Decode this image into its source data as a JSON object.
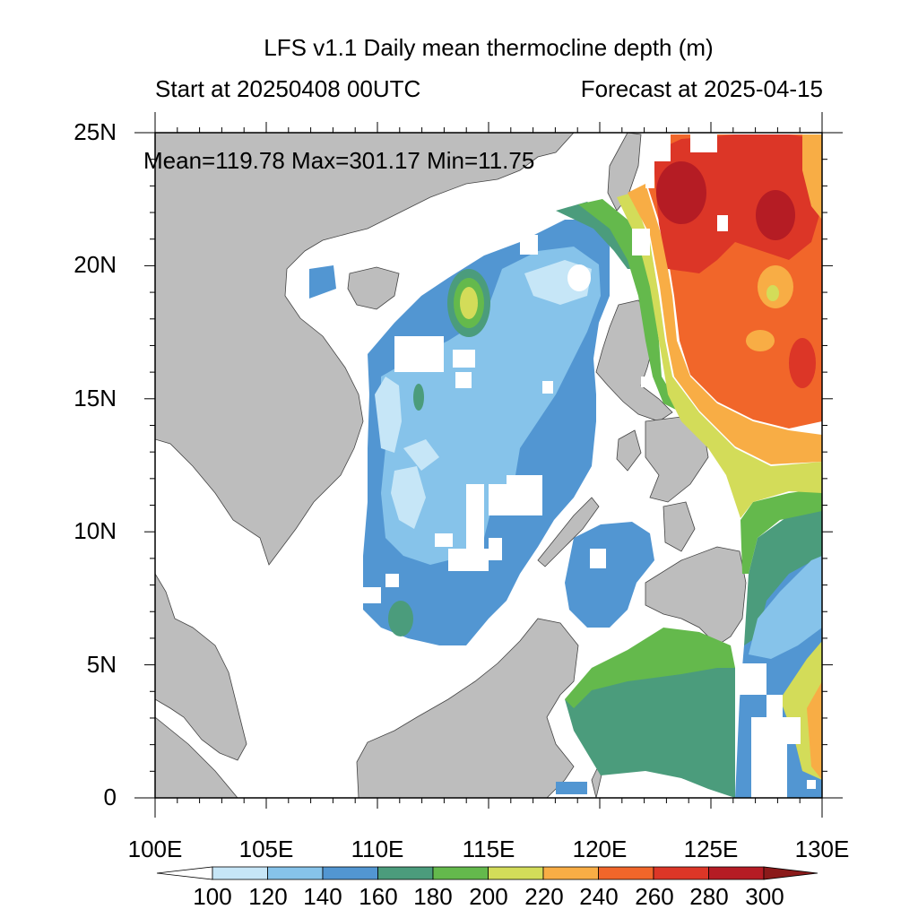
{
  "title": "LFS v1.1 Daily mean thermocline depth (m)",
  "start_label": "Start at 20250408 00UTC",
  "forecast_label": "Forecast at 2025-04-15",
  "stats_label": "Mean=119.78  Max=301.17  Min=11.75",
  "axes": {
    "x_ticks": [
      "100E",
      "105E",
      "110E",
      "115E",
      "120E",
      "125E",
      "130E"
    ],
    "y_ticks": [
      "25N",
      "20N",
      "15N",
      "10N",
      "5N",
      "0"
    ],
    "lon_range": [
      100,
      130
    ],
    "lat_range": [
      0,
      25
    ]
  },
  "colorbar": {
    "labels": [
      "100",
      "120",
      "140",
      "160",
      "180",
      "200",
      "220",
      "240",
      "260",
      "280",
      "300"
    ],
    "colors": [
      "#ffffff",
      "#c6e6f7",
      "#86c3ea",
      "#5296d2",
      "#4b9c7c",
      "#64b94c",
      "#d3dc59",
      "#f8ad45",
      "#f1662a",
      "#dc3627",
      "#b51c24",
      "#8b1a1a"
    ]
  },
  "colors": {
    "land": "#bdbdbd",
    "ocean_masked": "#ffffff",
    "frame": "#000000"
  }
}
